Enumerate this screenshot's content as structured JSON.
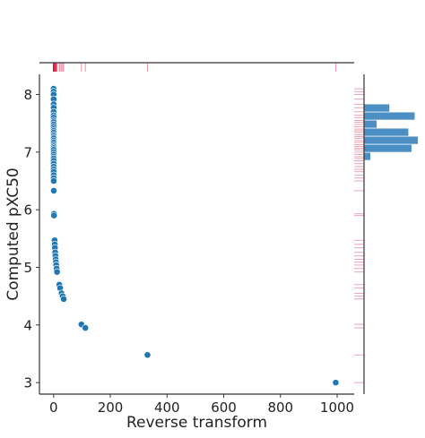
{
  "chart_data": {
    "type": "scatter",
    "xlabel": "Reverse transform",
    "ylabel": "Computed pXC50",
    "xlim": [
      -50,
      1060
    ],
    "ylim": [
      2.8,
      8.35
    ],
    "x_ticks": [
      0,
      200,
      400,
      600,
      800,
      1000
    ],
    "x_tick_labels": [
      "0",
      "200",
      "400",
      "600",
      "800",
      "1000"
    ],
    "y_ticks": [
      3,
      4,
      5,
      6,
      7,
      8
    ],
    "y_tick_labels": [
      "3",
      "4",
      "5",
      "6",
      "7",
      "8"
    ],
    "grid": false,
    "marginal_top": "rug",
    "marginal_right": "histogram with rug",
    "colors": {
      "points": "#1f77b4",
      "rug": "#d6183a",
      "histogram": "#4c8fc4",
      "axis": "#333333"
    },
    "points": [
      {
        "x": 0.008,
        "y": 8.1
      },
      {
        "x": 0.009,
        "y": 8.05
      },
      {
        "x": 0.01,
        "y": 8.0
      },
      {
        "x": 0.012,
        "y": 7.92
      },
      {
        "x": 0.015,
        "y": 7.83
      },
      {
        "x": 0.017,
        "y": 7.77
      },
      {
        "x": 0.02,
        "y": 7.7
      },
      {
        "x": 0.023,
        "y": 7.64
      },
      {
        "x": 0.025,
        "y": 7.6
      },
      {
        "x": 0.028,
        "y": 7.55
      },
      {
        "x": 0.03,
        "y": 7.52
      },
      {
        "x": 0.033,
        "y": 7.48
      },
      {
        "x": 0.036,
        "y": 7.44
      },
      {
        "x": 0.04,
        "y": 7.4
      },
      {
        "x": 0.043,
        "y": 7.37
      },
      {
        "x": 0.046,
        "y": 7.34
      },
      {
        "x": 0.05,
        "y": 7.3
      },
      {
        "x": 0.054,
        "y": 7.27
      },
      {
        "x": 0.058,
        "y": 7.24
      },
      {
        "x": 0.063,
        "y": 7.2
      },
      {
        "x": 0.068,
        "y": 7.17
      },
      {
        "x": 0.074,
        "y": 7.13
      },
      {
        "x": 0.079,
        "y": 7.1
      },
      {
        "x": 0.085,
        "y": 7.07
      },
      {
        "x": 0.091,
        "y": 7.04
      },
      {
        "x": 0.1,
        "y": 7.0
      },
      {
        "x": 0.11,
        "y": 6.96
      },
      {
        "x": 0.12,
        "y": 6.92
      },
      {
        "x": 0.13,
        "y": 6.89
      },
      {
        "x": 0.14,
        "y": 6.85
      },
      {
        "x": 0.16,
        "y": 6.8
      },
      {
        "x": 0.18,
        "y": 6.75
      },
      {
        "x": 0.2,
        "y": 6.7
      },
      {
        "x": 0.22,
        "y": 6.66
      },
      {
        "x": 0.25,
        "y": 6.6
      },
      {
        "x": 0.28,
        "y": 6.55
      },
      {
        "x": 0.32,
        "y": 6.5
      },
      {
        "x": 0.47,
        "y": 6.33
      },
      {
        "x": 1.2,
        "y": 5.93
      },
      {
        "x": 1.3,
        "y": 5.9
      },
      {
        "x": 3.4,
        "y": 5.47
      },
      {
        "x": 4.0,
        "y": 5.4
      },
      {
        "x": 4.6,
        "y": 5.34
      },
      {
        "x": 5.5,
        "y": 5.26
      },
      {
        "x": 6.3,
        "y": 5.2
      },
      {
        "x": 7.2,
        "y": 5.14
      },
      {
        "x": 8.1,
        "y": 5.09
      },
      {
        "x": 9.1,
        "y": 5.04
      },
      {
        "x": 10.5,
        "y": 4.98
      },
      {
        "x": 12.0,
        "y": 4.92
      },
      {
        "x": 20.0,
        "y": 4.7
      },
      {
        "x": 23.0,
        "y": 4.64
      },
      {
        "x": 28.0,
        "y": 4.55
      },
      {
        "x": 32.0,
        "y": 4.5
      },
      {
        "x": 35.5,
        "y": 4.45
      },
      {
        "x": 98.0,
        "y": 4.01
      },
      {
        "x": 112.0,
        "y": 3.95
      },
      {
        "x": 331.0,
        "y": 3.48
      },
      {
        "x": 995.0,
        "y": 3.0
      }
    ],
    "right_histogram": {
      "bins": [
        {
          "y0": 6.85,
          "y1": 6.99,
          "count": 2
        },
        {
          "y0": 6.99,
          "y1": 7.13,
          "count": 15
        },
        {
          "y0": 7.13,
          "y1": 7.27,
          "count": 17
        },
        {
          "y0": 7.27,
          "y1": 7.41,
          "count": 14
        },
        {
          "y0": 7.41,
          "y1": 7.55,
          "count": 4
        },
        {
          "y0": 7.55,
          "y1": 7.69,
          "count": 16
        },
        {
          "y0": 7.69,
          "y1": 7.83,
          "count": 8
        }
      ]
    }
  }
}
